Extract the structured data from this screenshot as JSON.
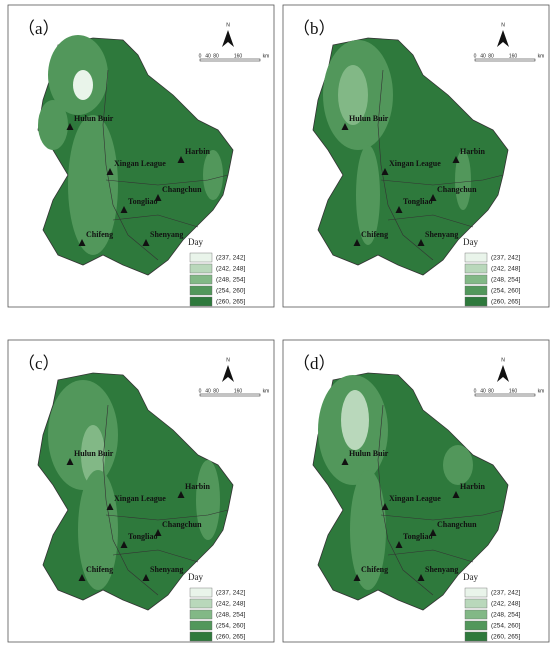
{
  "panels": [
    {
      "label": "（a）"
    },
    {
      "label": "（b）"
    },
    {
      "label": "（c）"
    },
    {
      "label": "（d）"
    }
  ],
  "map": {
    "north": "N",
    "scale_bar": [
      "0",
      "40",
      "80",
      "160",
      "km"
    ],
    "cities": [
      "Hulun Buir",
      "Harbin",
      "Xingan League",
      "Changchun",
      "Tongliao",
      "Chifeng",
      "Shenyang"
    ],
    "legend": {
      "title": "Day",
      "items": [
        "(237, 242]",
        "(242, 248]",
        "(248, 254]",
        "(254, 260]",
        "(260, 265]"
      ]
    }
  }
}
